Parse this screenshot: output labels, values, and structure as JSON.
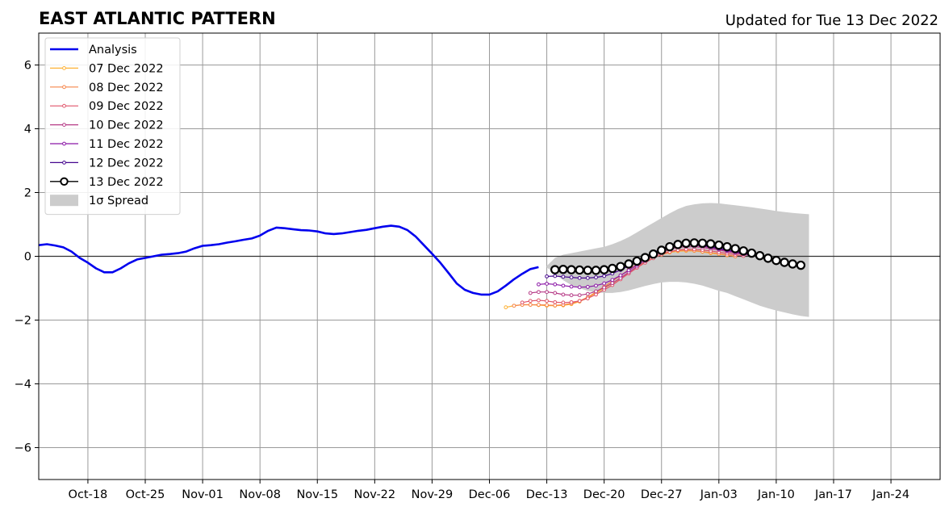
{
  "chart_data": {
    "type": "line",
    "title": "EAST ATLANTIC PATTERN",
    "subtitle": "Updated for Tue 13 Dec 2022",
    "xlabel": "",
    "ylabel": "",
    "ylim": [
      -7,
      7
    ],
    "yticks": [
      -6,
      -4,
      -2,
      0,
      2,
      4,
      6
    ],
    "ytick_labels": [
      "−6",
      "−4",
      "−2",
      "0",
      "2",
      "4",
      "6"
    ],
    "xlim": [
      "2022-10-12",
      "2023-01-30"
    ],
    "xticks": [
      "2022-10-18",
      "2022-10-25",
      "2022-11-01",
      "2022-11-08",
      "2022-11-15",
      "2022-11-22",
      "2022-11-29",
      "2022-12-06",
      "2022-12-13",
      "2022-12-20",
      "2022-12-27",
      "2023-01-03",
      "2023-01-10",
      "2023-01-17",
      "2023-01-24"
    ],
    "xtick_labels": [
      "Oct-18",
      "Oct-25",
      "Nov-01",
      "Nov-08",
      "Nov-15",
      "Nov-22",
      "Nov-29",
      "Dec-06",
      "Dec-13",
      "Dec-20",
      "Dec-27",
      "Jan-03",
      "Jan-10",
      "Jan-17",
      "Jan-24"
    ],
    "grid": true,
    "legend_position": "top-left",
    "legend": [
      {
        "label": "Analysis",
        "color": "#0000ee",
        "kind": "thick-line"
      },
      {
        "label": "07 Dec 2022",
        "color": "#fdb135",
        "kind": "line-marker"
      },
      {
        "label": "08 Dec 2022",
        "color": "#f6854a",
        "kind": "line-marker"
      },
      {
        "label": "09 Dec 2022",
        "color": "#e0546a",
        "kind": "line-marker"
      },
      {
        "label": "10 Dec 2022",
        "color": "#b63a86",
        "kind": "line-marker"
      },
      {
        "label": "11 Dec 2022",
        "color": "#8b18a6",
        "kind": "line-marker"
      },
      {
        "label": "12 Dec 2022",
        "color": "#46068f",
        "kind": "line-marker"
      },
      {
        "label": "13 Dec 2022",
        "color": "#000000",
        "kind": "big-marker"
      },
      {
        "label": "1σ Spread",
        "color": "#cccccc",
        "kind": "patch"
      }
    ],
    "analysis": {
      "name": "Analysis",
      "color": "#0000ee",
      "start": "2022-10-12",
      "values": [
        0.35,
        0.38,
        0.34,
        0.28,
        0.15,
        -0.05,
        -0.2,
        -0.38,
        -0.5,
        -0.5,
        -0.38,
        -0.22,
        -0.1,
        -0.05,
        0.0,
        0.05,
        0.07,
        0.1,
        0.15,
        0.25,
        0.33,
        0.35,
        0.38,
        0.43,
        0.47,
        0.52,
        0.56,
        0.65,
        0.8,
        0.9,
        0.88,
        0.85,
        0.82,
        0.81,
        0.78,
        0.72,
        0.7,
        0.72,
        0.76,
        0.8,
        0.83,
        0.88,
        0.93,
        0.96,
        0.93,
        0.82,
        0.62,
        0.35,
        0.08,
        -0.2,
        -0.52,
        -0.85,
        -1.05,
        -1.15,
        -1.2,
        -1.2,
        -1.1,
        -0.92,
        -0.72,
        -0.55,
        -0.4,
        -0.34
      ]
    },
    "forecasts": [
      {
        "name": "07 Dec 2022",
        "color": "#fdb135",
        "start": "2022-12-08",
        "values": [
          -1.6,
          -1.55,
          -1.52,
          -1.52,
          -1.53,
          -1.55,
          -1.55,
          -1.54,
          -1.5,
          -1.42,
          -1.3,
          -1.15,
          -1.0,
          -0.85,
          -0.68,
          -0.5,
          -0.32,
          -0.18,
          -0.05,
          0.05,
          0.12,
          0.16,
          0.17,
          0.17,
          0.14,
          0.1,
          0.07,
          0.03,
          0.0
        ]
      },
      {
        "name": "08 Dec 2022",
        "color": "#f6854a",
        "start": "2022-12-09",
        "values": [
          -1.55,
          -1.52,
          -1.52,
          -1.52,
          -1.53,
          -1.54,
          -1.52,
          -1.48,
          -1.4,
          -1.28,
          -1.12,
          -0.95,
          -0.78,
          -0.6,
          -0.42,
          -0.25,
          -0.1,
          0.02,
          0.1,
          0.15,
          0.18,
          0.19,
          0.18,
          0.15,
          0.12,
          0.08,
          0.04,
          0.0
        ]
      },
      {
        "name": "09 Dec 2022",
        "color": "#e0546a",
        "start": "2022-12-10",
        "values": [
          -1.45,
          -1.4,
          -1.38,
          -1.4,
          -1.44,
          -1.45,
          -1.44,
          -1.4,
          -1.32,
          -1.2,
          -1.05,
          -0.9,
          -0.72,
          -0.54,
          -0.36,
          -0.2,
          -0.06,
          0.06,
          0.14,
          0.2,
          0.22,
          0.22,
          0.2,
          0.17,
          0.13,
          0.09,
          0.05,
          0.01
        ]
      },
      {
        "name": "10 Dec 2022",
        "color": "#b63a86",
        "start": "2022-12-11",
        "values": [
          -1.15,
          -1.12,
          -1.12,
          -1.15,
          -1.2,
          -1.22,
          -1.22,
          -1.18,
          -1.1,
          -0.98,
          -0.84,
          -0.68,
          -0.5,
          -0.32,
          -0.15,
          0.0,
          0.12,
          0.22,
          0.28,
          0.3,
          0.3,
          0.28,
          0.24,
          0.2,
          0.15,
          0.1,
          0.06,
          0.02
        ]
      },
      {
        "name": "11 Dec 2022",
        "color": "#8b18a6",
        "start": "2022-12-12",
        "values": [
          -0.88,
          -0.86,
          -0.88,
          -0.92,
          -0.95,
          -0.97,
          -0.96,
          -0.92,
          -0.85,
          -0.74,
          -0.6,
          -0.44,
          -0.27,
          -0.1,
          0.05,
          0.18,
          0.28,
          0.34,
          0.36,
          0.35,
          0.32,
          0.28,
          0.23,
          0.18,
          0.13,
          0.08,
          0.04,
          0.0
        ]
      },
      {
        "name": "12 Dec 2022",
        "color": "#46068f",
        "start": "2022-12-13",
        "values": [
          -0.63,
          -0.62,
          -0.64,
          -0.66,
          -0.68,
          -0.68,
          -0.66,
          -0.62,
          -0.54,
          -0.43,
          -0.3,
          -0.16,
          -0.02,
          0.12,
          0.24,
          0.33,
          0.38,
          0.4,
          0.38,
          0.35,
          0.3,
          0.25,
          0.2,
          0.15,
          0.1,
          0.05,
          0.0,
          -0.04
        ]
      },
      {
        "name": "13 Dec 2022",
        "color": "#000000",
        "start": "2022-12-14",
        "values": [
          -0.42,
          -0.41,
          -0.42,
          -0.43,
          -0.44,
          -0.44,
          -0.42,
          -0.38,
          -0.32,
          -0.24,
          -0.15,
          -0.04,
          0.07,
          0.19,
          0.3,
          0.37,
          0.41,
          0.42,
          0.41,
          0.39,
          0.35,
          0.3,
          0.24,
          0.17,
          0.1,
          0.02,
          -0.06,
          -0.13,
          -0.19,
          -0.24,
          -0.28
        ]
      }
    ],
    "spread": {
      "name": "1σ Spread",
      "color": "#cccccc",
      "start": "2022-12-13",
      "upper": [
        -0.3,
        -0.05,
        0.05,
        0.1,
        0.15,
        0.2,
        0.25,
        0.3,
        0.38,
        0.48,
        0.6,
        0.75,
        0.9,
        1.05,
        1.2,
        1.35,
        1.48,
        1.58,
        1.63,
        1.66,
        1.67,
        1.66,
        1.63,
        1.6,
        1.57,
        1.54,
        1.5,
        1.46,
        1.42,
        1.39,
        1.36,
        1.34,
        1.32
      ],
      "lower": [
        -0.35,
        -0.55,
        -0.75,
        -0.9,
        -1.0,
        -1.08,
        -1.13,
        -1.15,
        -1.15,
        -1.12,
        -1.07,
        -1.0,
        -0.93,
        -0.87,
        -0.82,
        -0.8,
        -0.8,
        -0.82,
        -0.86,
        -0.92,
        -1.0,
        -1.08,
        -1.15,
        -1.25,
        -1.35,
        -1.45,
        -1.55,
        -1.63,
        -1.7,
        -1.76,
        -1.82,
        -1.87,
        -1.9
      ]
    }
  }
}
